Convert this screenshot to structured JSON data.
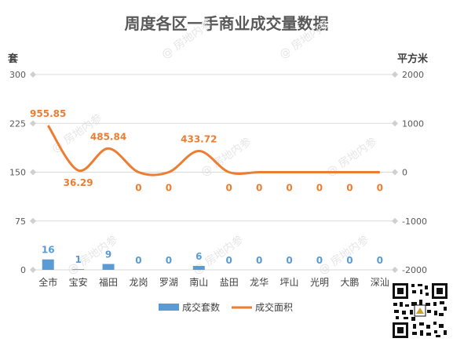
{
  "chart_data": {
    "type": "bar+line",
    "title": "周度各区一手商业成交量数据",
    "y_left_label": "套",
    "y_right_label": "平方米",
    "categories": [
      "全市",
      "宝安",
      "福田",
      "龙岗",
      "罗湖",
      "南山",
      "盐田",
      "龙华",
      "坪山",
      "光明",
      "大鹏",
      "深汕"
    ],
    "y_left_ticks": [
      "0",
      "75",
      "150",
      "225",
      "300"
    ],
    "y_right_ticks": [
      "-2000",
      "-1000",
      "0",
      "1000",
      "2000"
    ],
    "ylim_left": [
      0,
      300
    ],
    "ylim_right": [
      -2000,
      2000
    ],
    "series": [
      {
        "name": "成交套数",
        "type": "bar",
        "axis": "left",
        "color": "#5b9bd5",
        "values": [
          16,
          1,
          9,
          0,
          0,
          6,
          0,
          0,
          0,
          0,
          0,
          0
        ],
        "labels": [
          "16",
          "1",
          "9",
          "0",
          "0",
          "6",
          "0",
          "0",
          "0",
          "0",
          "0",
          "0"
        ]
      },
      {
        "name": "成交面积",
        "type": "line",
        "axis": "right",
        "color": "#ed7d31",
        "values": [
          955.85,
          36.29,
          485.84,
          0,
          0,
          433.72,
          0,
          0,
          0,
          0,
          0,
          0
        ],
        "labels": [
          "955.85",
          "36.29",
          "485.84",
          "0",
          "0",
          "433.72",
          "0",
          "0",
          "0",
          "0",
          "0",
          "0"
        ]
      }
    ],
    "legend_position": "bottom",
    "grid": true
  },
  "watermark": "房地内参",
  "label_colors": {
    "bar": "#5b9bd5",
    "line": "#ed7d31"
  }
}
